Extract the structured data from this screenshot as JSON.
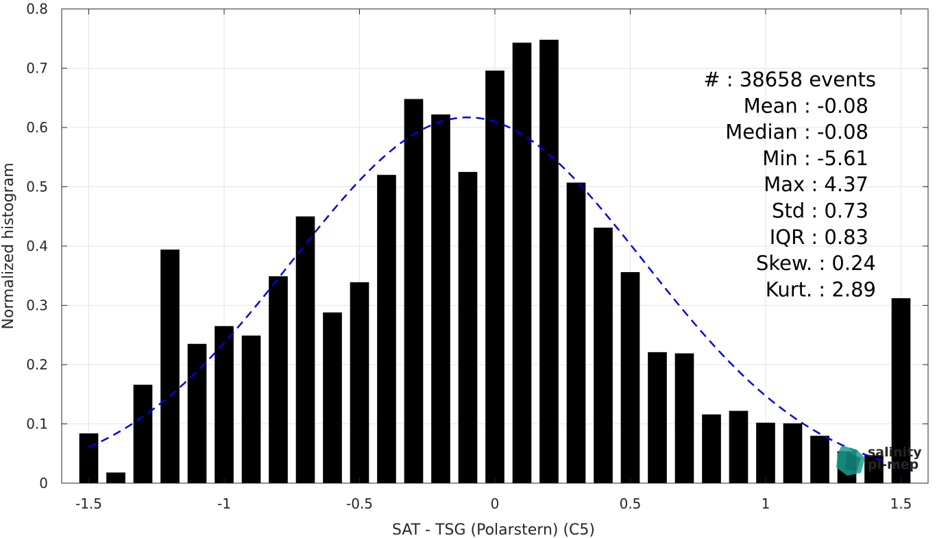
{
  "chart_data": {
    "type": "bar",
    "xlabel": "SAT - TSG (Polarstern) (C5)",
    "ylabel": "Normalized histogram",
    "xlim": [
      -1.6,
      1.6
    ],
    "ylim": [
      0,
      0.8
    ],
    "xticks": [
      -1.5,
      -1,
      -0.5,
      0,
      0.5,
      1,
      1.5
    ],
    "xtick_labels": [
      "-1.5",
      "-1",
      "-0.5",
      "0",
      "0.5",
      "1",
      "1.5"
    ],
    "yticks": [
      0,
      0.1,
      0.2,
      0.3,
      0.4,
      0.5,
      0.6,
      0.7,
      0.8
    ],
    "ytick_labels": [
      "0",
      "0.1",
      "0.2",
      "0.3",
      "0.4",
      "0.5",
      "0.6",
      "0.7",
      "0.8"
    ],
    "grid": true,
    "bar_color": "#000000",
    "bar_width": 0.07,
    "x": [
      -1.5,
      -1.4,
      -1.3,
      -1.2,
      -1.1,
      -1.0,
      -0.9,
      -0.8,
      -0.7,
      -0.6,
      -0.5,
      -0.4,
      -0.3,
      -0.2,
      -0.1,
      0.0,
      0.1,
      0.2,
      0.3,
      0.4,
      0.5,
      0.6,
      0.7,
      0.8,
      0.9,
      1.0,
      1.1,
      1.2,
      1.3,
      1.4,
      1.5
    ],
    "values": [
      0.084,
      0.018,
      0.166,
      0.394,
      0.235,
      0.265,
      0.249,
      0.349,
      0.45,
      0.288,
      0.339,
      0.52,
      0.648,
      0.622,
      0.525,
      0.696,
      0.743,
      0.748,
      0.507,
      0.431,
      0.356,
      0.221,
      0.219,
      0.116,
      0.122,
      0.102,
      0.101,
      0.08,
      0.054,
      0.047,
      0.312
    ],
    "fit_curve": {
      "style": "dashed",
      "color": "#0000e6",
      "type": "gaussian",
      "mean": -0.1,
      "std": 0.65,
      "peak": 0.617,
      "x_range": [
        -1.5,
        1.5
      ]
    },
    "stats": [
      {
        "label": "#  : 38658 events",
        "anchor": "end"
      },
      {
        "label": "Mean : -0.08",
        "anchor": "end"
      },
      {
        "label": "Median : -0.08",
        "anchor": "end"
      },
      {
        "label": "Min : -5.61",
        "anchor": "end"
      },
      {
        "label": "Max : 4.37",
        "anchor": "end"
      },
      {
        "label": "Std : 0.73",
        "anchor": "end"
      },
      {
        "label": "IQR : 0.83",
        "anchor": "end"
      },
      {
        "label": "Skew. : 0.24",
        "anchor": "end"
      },
      {
        "label": "Kurt. : 2.89",
        "anchor": "end"
      }
    ]
  },
  "logo": {
    "line1": "salinity",
    "line2": "pi-mep",
    "color": "#1a9e8f"
  }
}
